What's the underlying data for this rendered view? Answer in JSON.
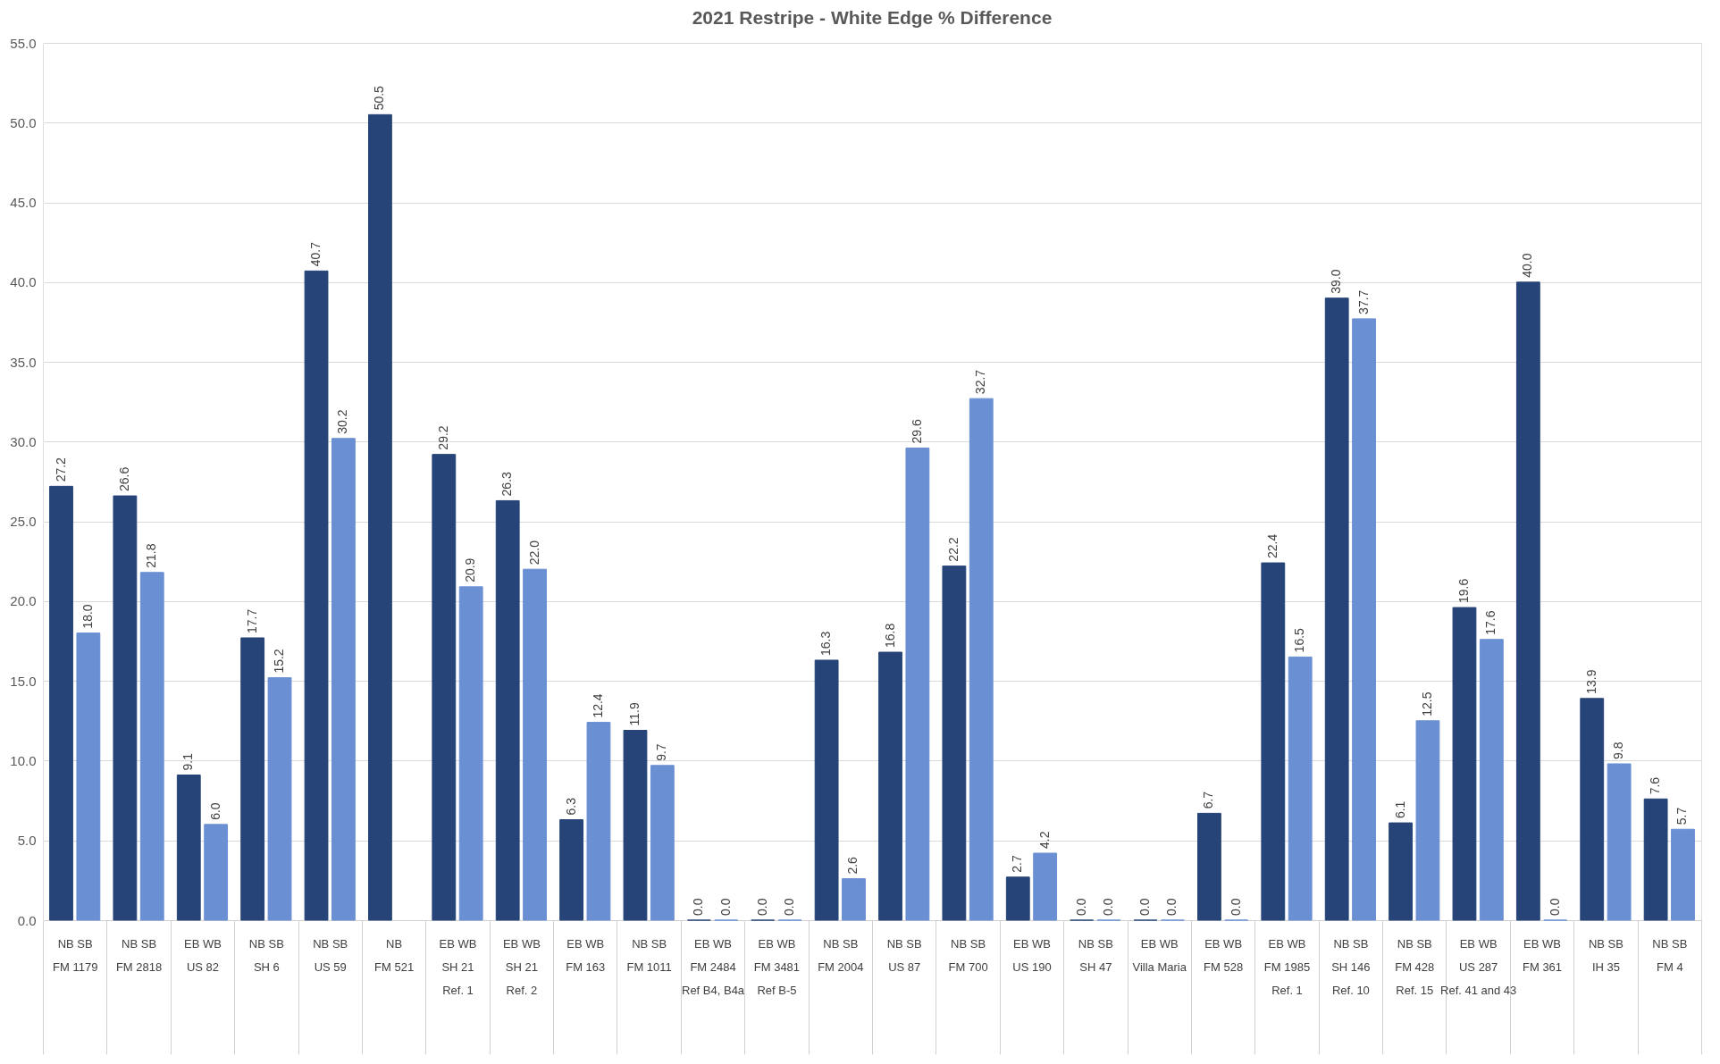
{
  "chart_data": {
    "type": "bar",
    "title": "2021 Restripe - White Edge % Difference",
    "categories": [
      "NB SB\nFM 1179",
      "NB SB\nFM 2818",
      "EB WB\nUS 82",
      "NB SB\nSH 6",
      "NB SB\nUS 59",
      "NB\nFM 521",
      "EB WB\nSH 21\nRef. 1",
      "EB WB\nSH 21\nRef. 2",
      "EB WB\nFM 163",
      "NB SB\nFM 1011",
      "EB WB\nFM 2484\nRef B4, B4a",
      "EB WB\nFM 3481\nRef B-5",
      "NB SB\nFM 2004",
      "NB SB\nUS 87",
      "NB SB\nFM 700",
      "EB WB\nUS 190",
      "NB SB\nSH 47",
      "EB WB\nVilla Maria",
      "EB WB\nFM 528",
      "EB WB\nFM 1985\nRef. 1",
      "NB SB\nSH 146\nRef. 10",
      "NB SB\nFM 428\nRef. 15",
      "EB WB\nUS 287\nRef. 41 and 43",
      "EB WB\nFM 361",
      "NB SB\nIH 35",
      "NB SB\nFM 4"
    ],
    "series": [
      {
        "color": "#264478",
        "values": [
          27.2,
          26.6,
          9.1,
          17.7,
          40.7,
          50.5,
          29.2,
          26.3,
          6.3,
          11.9,
          0.0,
          0.0,
          16.3,
          16.8,
          22.2,
          2.7,
          0.0,
          0.0,
          6.7,
          22.4,
          39.0,
          6.1,
          19.6,
          40.0,
          13.9,
          7.6
        ],
        "value_labels": [
          "27.2",
          "26.6",
          "9.1",
          "17.7",
          "40.7",
          "50.5",
          "29.2",
          "26.3",
          "6.3",
          "11.9",
          "0.0",
          "0.0",
          "16.3",
          "16.8",
          "22.2",
          "2.7",
          "0.0",
          "0.0",
          "6.7",
          "22.4",
          "39.0",
          "6.1",
          "19.6",
          "40.0",
          "13.9",
          "7.6"
        ]
      },
      {
        "color": "#6a8fd2",
        "values": [
          18.0,
          21.8,
          6.0,
          15.2,
          30.2,
          null,
          20.9,
          22.0,
          12.4,
          9.7,
          0.0,
          0.0,
          2.6,
          29.6,
          32.7,
          4.2,
          0.0,
          0.0,
          0.0,
          16.5,
          37.7,
          12.5,
          17.6,
          0.0,
          9.8,
          5.7
        ],
        "value_labels": [
          "18.0",
          "21.8",
          "6.0",
          "15.2",
          "30.2",
          null,
          "20.9",
          "22.0",
          "12.4",
          "9.7",
          "0.0",
          "0.0",
          "2.6",
          "29.6",
          "32.7",
          "4.2",
          "0.0",
          "0.0",
          "0.0",
          "16.5",
          "37.7",
          "12.5",
          "17.6",
          "0.0",
          "9.8",
          "5.7"
        ]
      }
    ],
    "ylim": [
      0,
      55
    ],
    "yticks": [
      {
        "value": 0,
        "label": "0.0"
      },
      {
        "value": 5,
        "label": "5.0"
      },
      {
        "value": 10,
        "label": "10.0"
      },
      {
        "value": 15,
        "label": "15.0"
      },
      {
        "value": 20,
        "label": "20.0"
      },
      {
        "value": 25,
        "label": "25.0"
      },
      {
        "value": 30,
        "label": "30.0"
      },
      {
        "value": 35,
        "label": "35.0"
      },
      {
        "value": 40,
        "label": "40.0"
      },
      {
        "value": 45,
        "label": "45.0"
      },
      {
        "value": 50,
        "label": "50.0"
      },
      {
        "value": 55,
        "label": "55.0"
      }
    ],
    "grid": "y"
  }
}
